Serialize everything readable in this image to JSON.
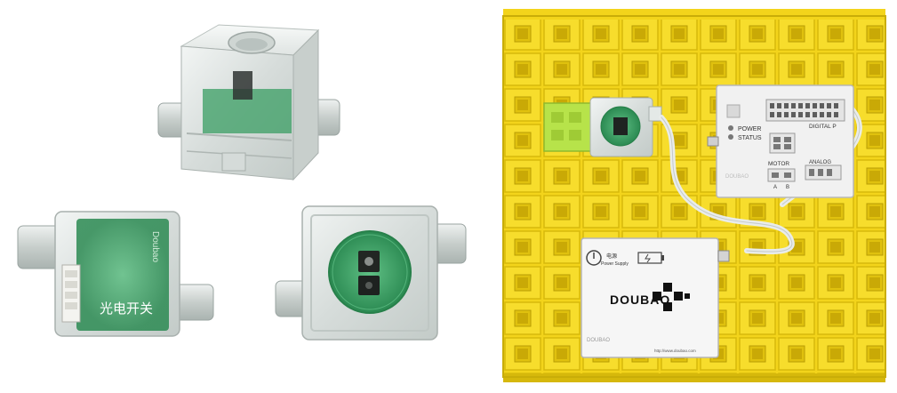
{
  "sensor_module": {
    "label_cn": "光电开关",
    "pcb_marking": "Doubao"
  },
  "controller": {
    "labels": {
      "power": "POWER",
      "status": "STATUS",
      "digital": "DIGITAL P",
      "motor": "MOTOR",
      "motor_a": "A",
      "motor_b": "B",
      "analog": "ANALOG",
      "brand_mark": "DOUBAO"
    }
  },
  "battery_pack": {
    "power_label": "电源",
    "power_supply": "Power Supply",
    "brand": "DOUBAO",
    "brand_small": "DOUBAO",
    "url": "http://www.doubao.com"
  },
  "colors": {
    "brick_yellow": "#f5d81a",
    "brick_shadow": "#c9ad08",
    "acrylic": "#e3e8e6",
    "pcb_green": "#2e9a5a",
    "controller_white": "#f1f1f1",
    "lime_connector": "#b7e34a"
  }
}
